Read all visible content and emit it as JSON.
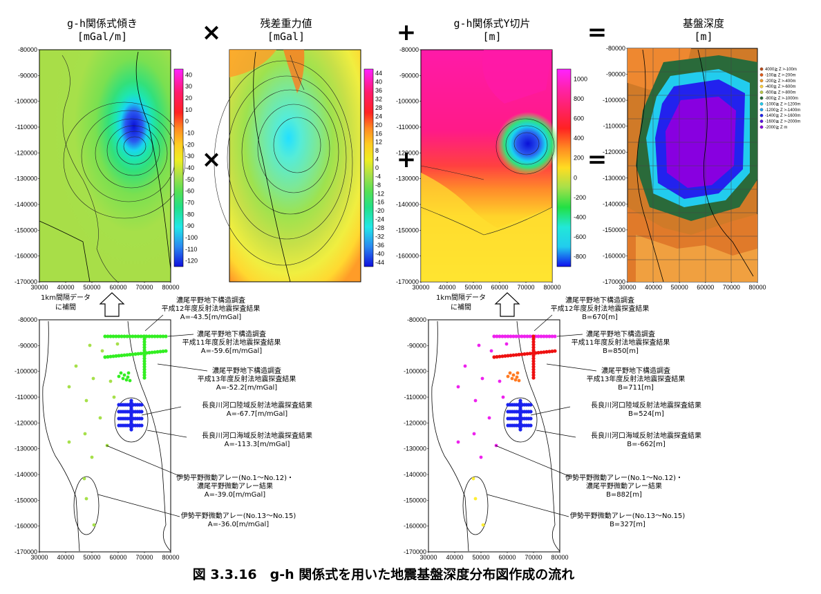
{
  "panel_titles": {
    "slope": [
      "g-h関係式傾き",
      "[mGal/m]"
    ],
    "residual": [
      "残差重力値",
      "[mGal]"
    ],
    "intercept": [
      "g-h関係式Y切片",
      "[m]"
    ],
    "depth": [
      "基盤深度",
      "[m]"
    ]
  },
  "operators": {
    "times": "×",
    "plus": "+",
    "equals": "="
  },
  "colorbars": {
    "slope": [
      "40",
      "30",
      "20",
      "10",
      "0",
      "-10",
      "-20",
      "-30",
      "-40",
      "-50",
      "-60",
      "-70",
      "-80",
      "-90",
      "-100",
      "-110",
      "-120"
    ],
    "residual": [
      "44",
      "40",
      "36",
      "32",
      "28",
      "24",
      "20",
      "16",
      "12",
      "8",
      "4",
      "0",
      "-4",
      "-8",
      "-12",
      "-16",
      "-20",
      "-24",
      "-28",
      "-32",
      "-36",
      "-40",
      "-44"
    ],
    "intercept": [
      "1000",
      "800",
      "600",
      "400",
      "200",
      "0",
      "-200",
      "-400",
      "-600",
      "-800"
    ]
  },
  "axes": {
    "y_ticks": [
      "-80000",
      "-90000",
      "-100000",
      "-110000",
      "-120000",
      "-130000",
      "-140000",
      "-150000",
      "-160000",
      "-170000"
    ],
    "x_ticks": [
      "30000",
      "40000",
      "50000",
      "60000",
      "70000",
      "80000"
    ]
  },
  "depth_legend": [
    "4000≧ Z >-100m",
    "-100≧ Z >-200m",
    "-200≧ Z >-400m",
    "-400≧ Z >-600m",
    "-600≧ Z >-800m",
    "-800≧ Z >-1000m",
    "-1000≧ Z >-1200m",
    "-1200≧ Z >-1400m",
    "-1400≧ Z >-1600m",
    "-1600≧ Z >-2000m",
    "-2000≧ Z m"
  ],
  "interp_label": [
    "1km間隔データ",
    "に補間"
  ],
  "annotations_slope": [
    [
      "濃尾平野地下構造調査",
      "平成12年度反射法地震探査結果",
      "A=-43.5[m/mGal]"
    ],
    [
      "濃尾平野地下構造調査",
      "平成11年度反射法地震探査結果",
      "A=-59.6[m/mGal]"
    ],
    [
      "濃尾平野地下構造調査",
      "平成13年度反射法地震探査結果",
      "A=-52.2[m/mGal]"
    ],
    [
      "長良川河口陸域反射法地震探査結果",
      "A=-67.7[m/mGal]"
    ],
    [
      "長良川河口海域反射法地震探査結果",
      "A=-113.3[m/mGal]"
    ],
    [
      "伊勢平野微動アレー(No.1～No.12)・",
      "濃尾平野微動アレー結果",
      "A=-39.0[m/mGal]"
    ],
    [
      "伊勢平野微動アレー(No.13～No.15)",
      "A=-36.0[m/mGal]"
    ]
  ],
  "annotations_intercept": [
    [
      "濃尾平野地下構造調査",
      "平成12年度反射法地震探査結果",
      "B=670[m]"
    ],
    [
      "濃尾平野地下構造調査",
      "平成11年度反射法地震探査結果",
      "B=850[m]"
    ],
    [
      "濃尾平野地下構造調査",
      "平成13年度反射法地震探査結果",
      "B=711[m]"
    ],
    [
      "長良川河口陸域反射法地震探査結果",
      "B=524[m]"
    ],
    [
      "長良川河口海域反射法地震探査結果",
      "B=-662[m]"
    ],
    [
      "伊勢平野微動アレー(No.1～No.12)・",
      "濃尾平野微動アレー結果",
      "B=882[m]"
    ],
    [
      "伊勢平野微動アレー(No.13～No.15)",
      "B=327[m]"
    ]
  ],
  "caption": "図 3.3.16　g-h 関係式を用いた地震基盤深度分布図作成の流れ",
  "colors": {
    "slope_base": "#a6e04a",
    "residual_base": "#9ee24e",
    "intercept_top": "#ff1aa8",
    "depth_deep": "#8800e0",
    "points_green": "#33ee22",
    "points_blue": "#1a22ee",
    "points_magenta": "#ee22ee",
    "points_red": "#ee1111"
  }
}
